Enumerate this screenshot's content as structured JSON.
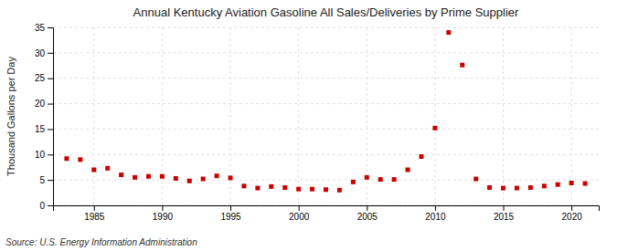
{
  "chart_data": {
    "type": "scatter",
    "title": "Annual Kentucky Aviation Gasoline All Sales/Deliveries by Prime Supplier",
    "ylabel": "Thousand Gallons per Day",
    "source": "Source: U.S. Energy Information Administration",
    "x": [
      1983,
      1984,
      1985,
      1986,
      1987,
      1988,
      1989,
      1990,
      1991,
      1992,
      1993,
      1994,
      1995,
      1996,
      1997,
      1998,
      1999,
      2000,
      2001,
      2002,
      2003,
      2004,
      2005,
      2006,
      2007,
      2008,
      2009,
      2010,
      2011,
      2012,
      2013,
      2014,
      2015,
      2016,
      2017,
      2018,
      2019,
      2020,
      2021
    ],
    "values": [
      9.2,
      9.0,
      7.0,
      7.3,
      6.0,
      5.5,
      5.7,
      5.7,
      5.3,
      4.8,
      5.2,
      5.8,
      5.4,
      3.8,
      3.4,
      3.7,
      3.5,
      3.2,
      3.2,
      3.1,
      3.0,
      4.6,
      5.5,
      5.1,
      5.1,
      7.0,
      9.6,
      15.2,
      34.0,
      27.6,
      5.2,
      3.5,
      3.4,
      3.4,
      3.5,
      3.8,
      4.1,
      4.4,
      4.3
    ],
    "color": "#cc0000",
    "marker": "square",
    "xlim": [
      1982,
      2022
    ],
    "ylim": [
      0,
      35
    ],
    "xticks": [
      1985,
      1990,
      1995,
      2000,
      2005,
      2010,
      2015,
      2020
    ],
    "yticks": [
      0,
      5,
      10,
      15,
      20,
      25,
      30,
      35
    ],
    "grid": true
  }
}
